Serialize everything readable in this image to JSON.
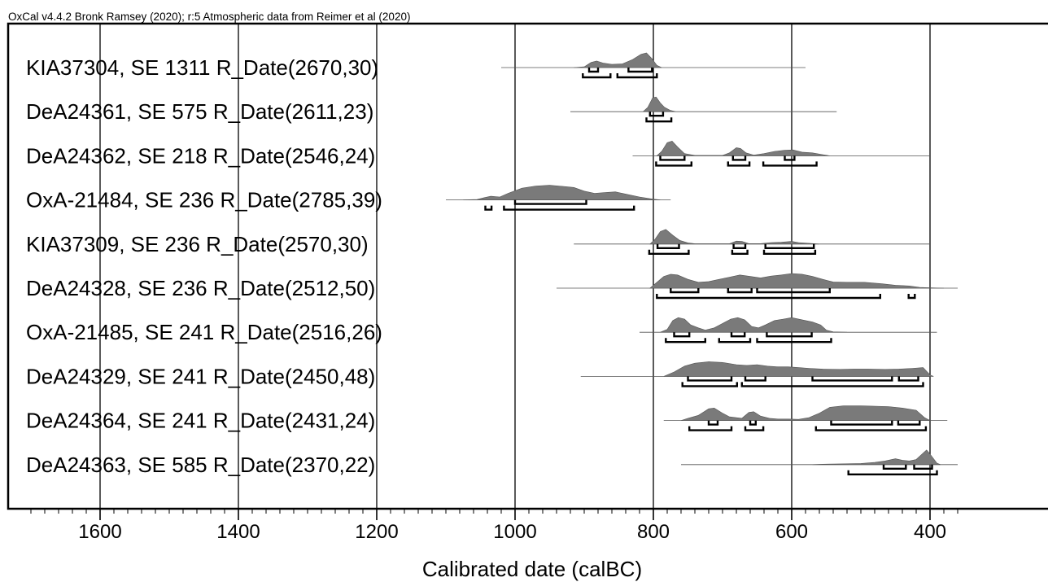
{
  "chart_data": {
    "type": "area",
    "header": "OxCal v4.4.2 Bronk Ramsey (2020); r:5 Atmospheric data from Reimer et al (2020)",
    "xlabel": "Calibrated date (calBC)",
    "xlim": [
      1730,
      360
    ],
    "x_ticks": [
      1600,
      1400,
      1200,
      1000,
      800,
      600,
      400
    ],
    "gridlines": [
      1600,
      1400,
      1200,
      1000,
      800,
      600,
      400
    ],
    "series": [
      {
        "name": "KIA37304, SE 1311 R_Date(2670,30)",
        "line": [
          1020,
          580
        ],
        "density": [
          [
            915,
            0
          ],
          [
            900,
            0.05
          ],
          [
            890,
            0.35
          ],
          [
            882,
            0.45
          ],
          [
            872,
            0.3
          ],
          [
            860,
            0.22
          ],
          [
            845,
            0.25
          ],
          [
            830,
            0.55
          ],
          [
            818,
            0.9
          ],
          [
            810,
            1
          ],
          [
            802,
            0.6
          ],
          [
            795,
            0.15
          ],
          [
            788,
            0
          ]
        ],
        "ranges_68": [
          [
            893,
            880
          ],
          [
            836,
            802
          ]
        ],
        "ranges_95": [
          [
            902,
            862
          ],
          [
            852,
            795
          ]
        ]
      },
      {
        "name": "DeA24361, SE 575 R_Date(2611,23)",
        "line": [
          920,
          535
        ],
        "density": [
          [
            815,
            0
          ],
          [
            808,
            0.3
          ],
          [
            801,
            0.95
          ],
          [
            796,
            1
          ],
          [
            790,
            0.6
          ],
          [
            784,
            0.3
          ],
          [
            776,
            0.1
          ],
          [
            768,
            0
          ]
        ],
        "ranges_68": [
          [
            805,
            786
          ]
        ],
        "ranges_95": [
          [
            810,
            774
          ]
        ]
      },
      {
        "name": "DeA24362, SE 218 R_Date(2546,24)",
        "line": [
          830,
          400
        ],
        "density": [
          [
            795,
            0
          ],
          [
            788,
            0.3
          ],
          [
            780,
            0.9
          ],
          [
            773,
            1
          ],
          [
            765,
            0.6
          ],
          [
            755,
            0.15
          ],
          [
            740,
            0.03
          ],
          [
            700,
            0.03
          ],
          [
            690,
            0.2
          ],
          [
            680,
            0.55
          ],
          [
            674,
            0.5
          ],
          [
            666,
            0.2
          ],
          [
            655,
            0.05
          ],
          [
            640,
            0.15
          ],
          [
            625,
            0.3
          ],
          [
            610,
            0.38
          ],
          [
            598,
            0.4
          ],
          [
            585,
            0.25
          ],
          [
            570,
            0.2
          ],
          [
            555,
            0.08
          ],
          [
            545,
            0
          ]
        ],
        "ranges_68": [
          [
            790,
            755
          ],
          [
            685,
            667
          ],
          [
            610,
            596
          ]
        ],
        "ranges_95": [
          [
            796,
            745
          ],
          [
            692,
            661
          ],
          [
            641,
            564
          ]
        ]
      },
      {
        "name": "OxA-21484, SE 236 R_Date(2785,39)",
        "line": [
          1100,
          775
        ],
        "density": [
          [
            1075,
            0
          ],
          [
            1055,
            0.03
          ],
          [
            1045,
            0.15
          ],
          [
            1035,
            0.25
          ],
          [
            1022,
            0.2
          ],
          [
            1010,
            0.45
          ],
          [
            990,
            0.8
          ],
          [
            970,
            0.95
          ],
          [
            950,
            1
          ],
          [
            930,
            0.92
          ],
          [
            915,
            0.85
          ],
          [
            900,
            0.6
          ],
          [
            885,
            0.45
          ],
          [
            870,
            0.5
          ],
          [
            855,
            0.55
          ],
          [
            840,
            0.4
          ],
          [
            820,
            0.2
          ],
          [
            800,
            0.05
          ],
          [
            790,
            0
          ]
        ],
        "ranges_68": [
          [
            1000,
            897
          ]
        ],
        "ranges_95": [
          [
            1043,
            1034
          ],
          [
            1016,
            828
          ]
        ]
      },
      {
        "name": "KIA37309, SE 236 R_Date(2570,30)",
        "line": [
          915,
          400
        ],
        "density": [
          [
            805,
            0
          ],
          [
            798,
            0.3
          ],
          [
            790,
            0.85
          ],
          [
            782,
            1
          ],
          [
            772,
            0.6
          ],
          [
            762,
            0.25
          ],
          [
            750,
            0.08
          ],
          [
            740,
            0.02
          ],
          [
            690,
            0.02
          ],
          [
            680,
            0.2
          ],
          [
            672,
            0.18
          ],
          [
            662,
            0.03
          ],
          [
            645,
            0.03
          ],
          [
            630,
            0.1
          ],
          [
            615,
            0.12
          ],
          [
            600,
            0.18
          ],
          [
            590,
            0.1
          ],
          [
            575,
            0.05
          ],
          [
            560,
            0
          ]
        ],
        "ranges_68": [
          [
            794,
            763
          ],
          [
            684,
            667
          ],
          [
            638,
            568
          ]
        ],
        "ranges_95": [
          [
            806,
            749
          ],
          [
            686,
            664
          ],
          [
            640,
            566
          ]
        ]
      },
      {
        "name": "DeA24328, SE 236 R_Date(2512,50)",
        "line": [
          940,
          360
        ],
        "density": [
          [
            805,
            0
          ],
          [
            795,
            0.4
          ],
          [
            785,
            0.8
          ],
          [
            775,
            0.95
          ],
          [
            765,
            0.9
          ],
          [
            750,
            0.6
          ],
          [
            735,
            0.4
          ],
          [
            720,
            0.45
          ],
          [
            705,
            0.6
          ],
          [
            690,
            0.75
          ],
          [
            675,
            0.9
          ],
          [
            660,
            0.8
          ],
          [
            645,
            0.7
          ],
          [
            630,
            0.82
          ],
          [
            615,
            0.9
          ],
          [
            600,
            1
          ],
          [
            585,
            0.95
          ],
          [
            570,
            0.8
          ],
          [
            555,
            0.6
          ],
          [
            540,
            0.42
          ],
          [
            520,
            0.4
          ],
          [
            495,
            0.4
          ],
          [
            470,
            0.3
          ],
          [
            450,
            0.2
          ],
          [
            430,
            0.15
          ],
          [
            415,
            0.05
          ],
          [
            400,
            0.03
          ],
          [
            380,
            0
          ]
        ],
        "ranges_68": [
          [
            775,
            735
          ],
          [
            692,
            658
          ],
          [
            650,
            545
          ]
        ],
        "ranges_95": [
          [
            795,
            472
          ],
          [
            431,
            422
          ]
        ]
      },
      {
        "name": "OxA-21485, SE 241 R_Date(2516,26)",
        "line": [
          820,
          390
        ],
        "density": [
          [
            790,
            0
          ],
          [
            780,
            0.2
          ],
          [
            772,
            0.8
          ],
          [
            764,
            1
          ],
          [
            755,
            0.9
          ],
          [
            746,
            0.5
          ],
          [
            735,
            0.3
          ],
          [
            725,
            0.15
          ],
          [
            712,
            0.3
          ],
          [
            700,
            0.6
          ],
          [
            688,
            0.9
          ],
          [
            678,
            1
          ],
          [
            668,
            0.85
          ],
          [
            658,
            0.4
          ],
          [
            648,
            0.3
          ],
          [
            638,
            0.5
          ],
          [
            625,
            0.8
          ],
          [
            612,
            0.9
          ],
          [
            600,
            1
          ],
          [
            585,
            0.85
          ],
          [
            570,
            0.7
          ],
          [
            558,
            0.5
          ],
          [
            550,
            0.15
          ],
          [
            540,
            0.03
          ],
          [
            520,
            0
          ]
        ],
        "ranges_68": [
          [
            770,
            748
          ],
          [
            687,
            668
          ],
          [
            636,
            571
          ]
        ],
        "ranges_95": [
          [
            782,
            725
          ],
          [
            705,
            660
          ],
          [
            650,
            543
          ]
        ]
      },
      {
        "name": "DeA24329, SE 241 R_Date(2450,48)",
        "line": [
          905,
          400
        ],
        "density": [
          [
            785,
            0
          ],
          [
            770,
            0.3
          ],
          [
            755,
            0.7
          ],
          [
            740,
            0.9
          ],
          [
            720,
            1
          ],
          [
            700,
            0.95
          ],
          [
            680,
            0.8
          ],
          [
            665,
            0.75
          ],
          [
            650,
            0.8
          ],
          [
            635,
            0.7
          ],
          [
            620,
            0.65
          ],
          [
            605,
            0.65
          ],
          [
            590,
            0.6
          ],
          [
            575,
            0.55
          ],
          [
            555,
            0.5
          ],
          [
            530,
            0.48
          ],
          [
            510,
            0.5
          ],
          [
            490,
            0.5
          ],
          [
            465,
            0.48
          ],
          [
            445,
            0.5
          ],
          [
            425,
            0.55
          ],
          [
            410,
            0.6
          ],
          [
            400,
            0.1
          ],
          [
            395,
            0
          ]
        ],
        "ranges_68": [
          [
            750,
            687
          ],
          [
            667,
            638
          ],
          [
            570,
            455
          ],
          [
            445,
            417
          ]
        ],
        "ranges_95": [
          [
            758,
            679
          ],
          [
            672,
            410
          ]
        ]
      },
      {
        "name": "DeA24364, SE 241 R_Date(2431,24)",
        "line": [
          785,
          375
        ],
        "density": [
          [
            760,
            0
          ],
          [
            750,
            0.15
          ],
          [
            735,
            0.35
          ],
          [
            720,
            0.8
          ],
          [
            712,
            0.85
          ],
          [
            700,
            0.5
          ],
          [
            690,
            0.25
          ],
          [
            672,
            0.15
          ],
          [
            662,
            0.55
          ],
          [
            655,
            0.6
          ],
          [
            645,
            0.3
          ],
          [
            632,
            0.15
          ],
          [
            620,
            0.1
          ],
          [
            605,
            0.1
          ],
          [
            590,
            0.08
          ],
          [
            575,
            0.2
          ],
          [
            560,
            0.5
          ],
          [
            545,
            0.9
          ],
          [
            525,
            1
          ],
          [
            500,
            1
          ],
          [
            480,
            0.98
          ],
          [
            460,
            0.95
          ],
          [
            440,
            0.85
          ],
          [
            420,
            0.7
          ],
          [
            408,
            0.2
          ],
          [
            400,
            0
          ]
        ],
        "ranges_68": [
          [
            720,
            707
          ],
          [
            660,
            652
          ],
          [
            543,
            455
          ],
          [
            446,
            415
          ]
        ],
        "ranges_95": [
          [
            748,
            687
          ],
          [
            667,
            641
          ],
          [
            565,
            406
          ]
        ]
      },
      {
        "name": "DeA24363, SE 585 R_Date(2370,22)",
        "line": [
          760,
          360
        ],
        "density": [
          [
            570,
            0
          ],
          [
            555,
            0.03
          ],
          [
            530,
            0.05
          ],
          [
            500,
            0.08
          ],
          [
            480,
            0.15
          ],
          [
            465,
            0.25
          ],
          [
            450,
            0.4
          ],
          [
            440,
            0.3
          ],
          [
            430,
            0.25
          ],
          [
            420,
            0.35
          ],
          [
            412,
            0.7
          ],
          [
            405,
            1
          ],
          [
            398,
            0.6
          ],
          [
            390,
            0.1
          ],
          [
            385,
            0
          ]
        ],
        "ranges_68": [
          [
            467,
            435
          ],
          [
            423,
            397
          ]
        ],
        "ranges_95": [
          [
            518,
            390
          ]
        ]
      }
    ]
  }
}
